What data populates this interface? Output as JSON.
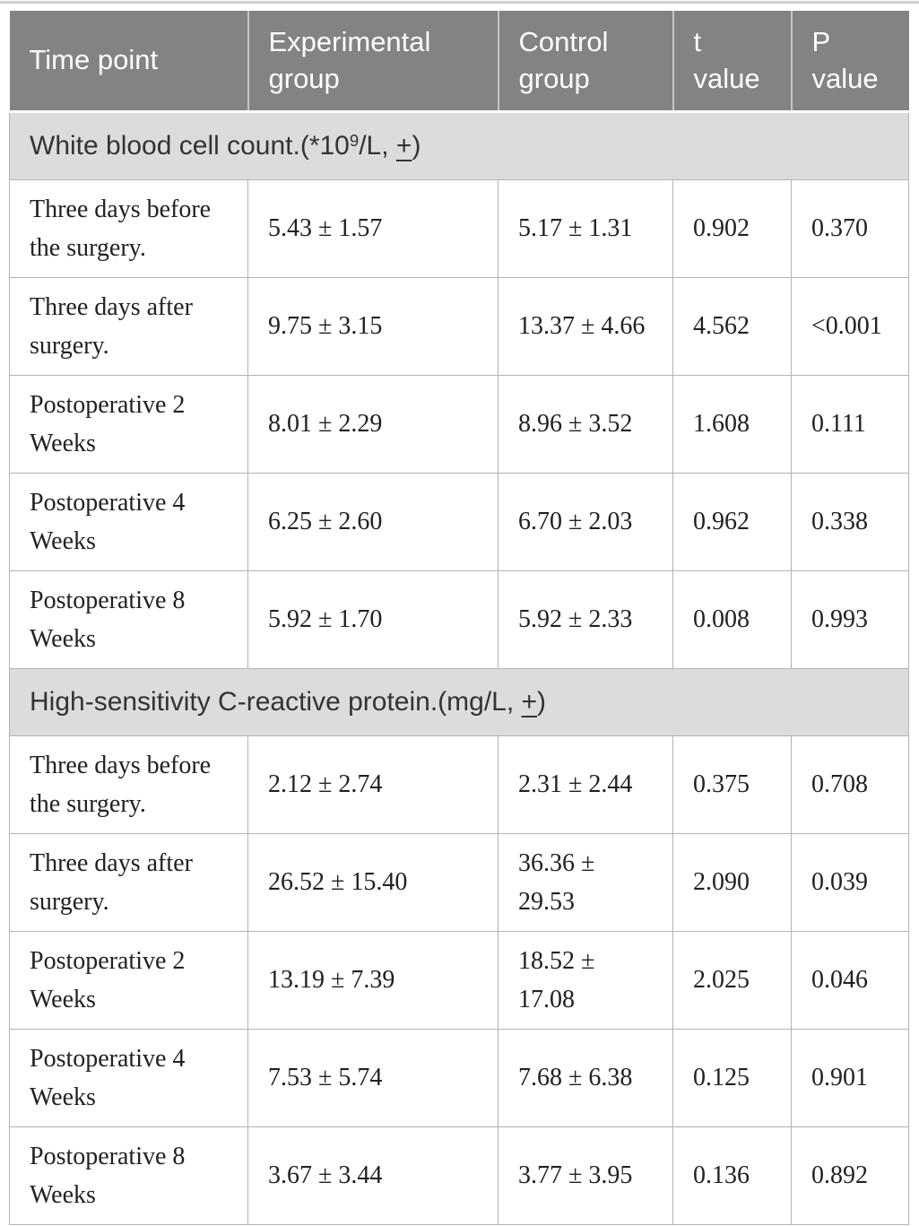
{
  "page": {
    "background": "#ffffff",
    "top_rule_color": "#cfcfcf"
  },
  "colors": {
    "header_bg": "#838383",
    "header_text": "#ffffff",
    "header_divider": "#c6c6c6",
    "section_bg": "#dcdcdc",
    "section_text": "#333333",
    "body_text": "#212121",
    "border": "#b3b3b3"
  },
  "table": {
    "columns": [
      "Time point",
      "Experimental\ngroup",
      "Control\ngroup",
      "t\nvalue",
      "P\nvalue"
    ],
    "sections": [
      {
        "title_prefix": "White blood cell count.(*10",
        "title_sup": "9",
        "title_mid": "/L, ",
        "title_pm": "+",
        "title_suffix": ")",
        "rows": [
          {
            "time_point": "Three days before\nthe surgery.",
            "experimental": "5.43 ± 1.57",
            "control": "5.17 ± 1.31",
            "t": "0.902",
            "p": "0.370"
          },
          {
            "time_point": "Three days after\nsurgery.",
            "experimental": "9.75 ± 3.15",
            "control": "13.37 ± 4.66",
            "t": "4.562",
            "p": "<0.001"
          },
          {
            "time_point": "Postoperative 2\nWeeks",
            "experimental": "8.01 ± 2.29",
            "control": "8.96 ± 3.52",
            "t": "1.608",
            "p": "0.111"
          },
          {
            "time_point": "Postoperative 4\nWeeks",
            "experimental": "6.25 ± 2.60",
            "control": "6.70 ± 2.03",
            "t": "0.962",
            "p": "0.338"
          },
          {
            "time_point": "Postoperative 8\nWeeks",
            "experimental": "5.92 ± 1.70",
            "control": "5.92 ± 2.33",
            "t": "0.008",
            "p": "0.993"
          }
        ]
      },
      {
        "title_prefix": "High-sensitivity C-reactive protein.(mg/L, ",
        "title_sup": "",
        "title_mid": "",
        "title_pm": "+",
        "title_suffix": ")",
        "rows": [
          {
            "time_point": "Three days before\nthe surgery.",
            "experimental": "2.12 ± 2.74",
            "control": "2.31 ± 2.44",
            "t": "0.375",
            "p": "0.708"
          },
          {
            "time_point": "Three days after\nsurgery.",
            "experimental": "26.52 ± 15.40",
            "control": "36.36 ±\n29.53",
            "t": "2.090",
            "p": "0.039"
          },
          {
            "time_point": "Postoperative 2\nWeeks",
            "experimental": "13.19 ± 7.39",
            "control": "18.52 ±\n17.08",
            "t": "2.025",
            "p": "0.046"
          },
          {
            "time_point": "Postoperative 4\nWeeks",
            "experimental": "7.53 ± 5.74",
            "control": "7.68 ± 6.38",
            "t": "0.125",
            "p": "0.901"
          },
          {
            "time_point": "Postoperative 8\nWeeks",
            "experimental": "3.67 ± 3.44",
            "control": "3.77 ± 3.95",
            "t": "0.136",
            "p": "0.892"
          }
        ]
      }
    ]
  }
}
